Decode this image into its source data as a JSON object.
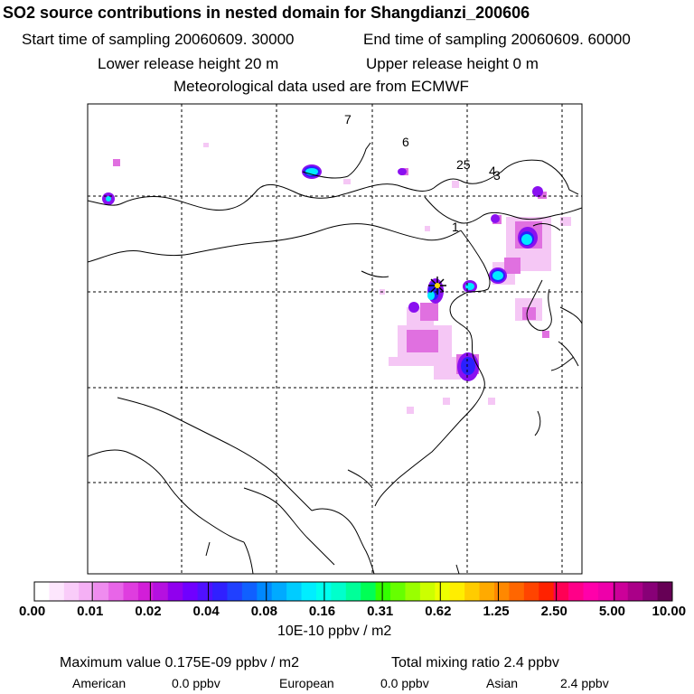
{
  "header": {
    "title": "SO2 source contributions in nested domain for Shangdianzi_200606",
    "start_time": "Start time of sampling 20060609. 30000",
    "end_time": "End time of sampling 20060609. 60000",
    "lower_height": "Lower release height   20 m",
    "upper_height": "Upper release height    0 m",
    "met_data": "Meteorological data used are from ECMWF"
  },
  "map": {
    "region_labels": [
      "7",
      "6",
      "25",
      "4",
      "3",
      "1"
    ],
    "receptor_marker": "receptor-star",
    "colors": {
      "coast": "#000000",
      "grid": "#000000"
    }
  },
  "colorbar": {
    "tick_labels": [
      "0.00",
      "0.01",
      "0.02",
      "0.04",
      "0.08",
      "0.16",
      "0.31",
      "0.62",
      "1.25",
      "2.50",
      "5.00",
      "10.00"
    ],
    "unit": "10E-10 ppbv / m2",
    "colors": [
      "#ffffff",
      "#fde6fd",
      "#f9ccf9",
      "#f5b0f5",
      "#ef8cef",
      "#e865e8",
      "#df3ddf",
      "#d21ed8",
      "#b510e0",
      "#9000ee",
      "#7000ff",
      "#5010ff",
      "#3020ff",
      "#2040ff",
      "#1060ff",
      "#0088ff",
      "#00aaff",
      "#00ccff",
      "#00eeff",
      "#00ffee",
      "#00ffcc",
      "#00ff99",
      "#00ff55",
      "#33ff00",
      "#66ff00",
      "#99ff00",
      "#ccff00",
      "#eeff00",
      "#ffee00",
      "#ffcc00",
      "#ffaa00",
      "#ff8800",
      "#ff6600",
      "#ff4400",
      "#ff2200",
      "#ff0055",
      "#ff0088",
      "#ff00aa",
      "#ee00aa",
      "#cc0099",
      "#aa0088",
      "#880077",
      "#660055"
    ]
  },
  "footer": {
    "max_value": "Maximum value  0.175E-09 ppbv / m2",
    "total_mixing": "Total mixing ratio       2.4 ppbv",
    "american_label": "American",
    "american_value": "0.0 ppbv",
    "european_label": "European",
    "european_value": "0.0 ppbv",
    "asian_label": "Asian",
    "asian_value": "2.4 ppbv"
  }
}
